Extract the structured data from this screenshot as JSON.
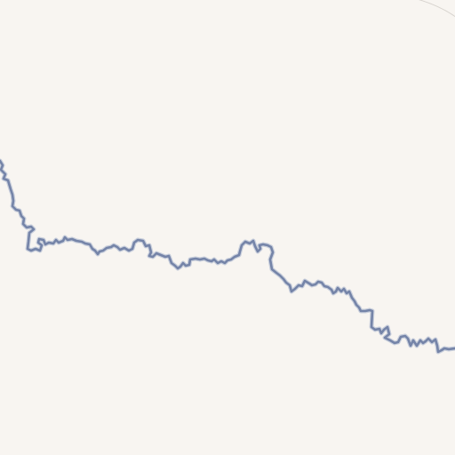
{
  "map": {
    "land_color": "#f8f5f1",
    "border_color": "#7584a8",
    "border_casing_color": "#c9cfdc",
    "edge_line_color": "#d8d4cf"
  }
}
